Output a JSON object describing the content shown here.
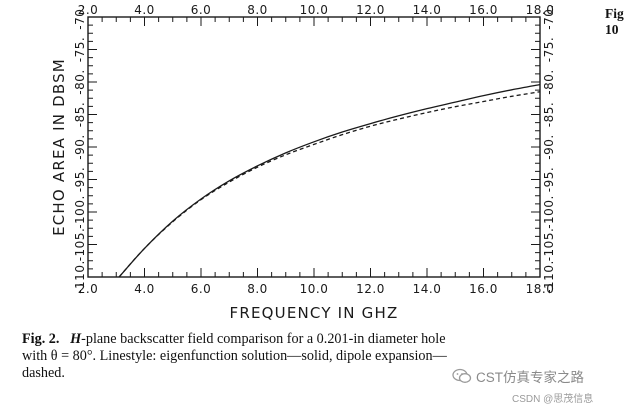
{
  "chart_data": {
    "type": "line",
    "title": "",
    "xlabel": "FREQUENCY IN GHZ",
    "ylabel": "ECHO AREA IN DBSM",
    "xlim": [
      2.0,
      18.0
    ],
    "ylim": [
      -110.0,
      -70.0
    ],
    "x_ticks": [
      "2.0",
      "4.0",
      "6.0",
      "8.0",
      "10.0",
      "12.0",
      "14.0",
      "16.0",
      "18.0"
    ],
    "y_ticks": [
      "-110.",
      "-105.",
      "-100.",
      "-95.",
      "-90.",
      "-85.",
      "-80.",
      "-75.",
      "-70."
    ],
    "grid": false,
    "series": [
      {
        "name": "eigenfunction solution",
        "style": "solid",
        "x": [
          3.1,
          4.0,
          5.0,
          6.0,
          7.0,
          8.0,
          9.0,
          10.0,
          11.0,
          12.0,
          13.0,
          14.0,
          15.0,
          16.0,
          17.0,
          18.0
        ],
        "y": [
          -110.0,
          -105.6,
          -101.4,
          -98.0,
          -95.2,
          -92.9,
          -90.9,
          -89.2,
          -87.7,
          -86.4,
          -85.2,
          -84.1,
          -83.1,
          -82.1,
          -81.2,
          -80.4
        ]
      },
      {
        "name": "dipole expansion",
        "style": "dashed",
        "x": [
          3.1,
          4.0,
          5.0,
          6.0,
          7.0,
          8.0,
          9.0,
          10.0,
          11.0,
          12.0,
          13.0,
          14.0,
          15.0,
          16.0,
          17.0,
          18.0
        ],
        "y": [
          -110.0,
          -105.6,
          -101.5,
          -98.1,
          -95.4,
          -93.1,
          -91.2,
          -89.6,
          -88.1,
          -86.8,
          -85.7,
          -84.7,
          -83.8,
          -83.0,
          -82.2,
          -81.5
        ]
      }
    ]
  },
  "caption": {
    "fig_label": "Fig. 2.",
    "h_plane": "H",
    "text_line1": "-plane backscatter field comparison for a 0.201-in diameter hole",
    "text_line2": "with θ = 80°. Linestyle: eigenfunction solution—solid, dipole expansion—",
    "text_line3": "dashed."
  },
  "side_fragment": {
    "line1": "Fig",
    "line2": "10"
  },
  "watermark": {
    "text": "CST仿真专家之路",
    "sub": "CSDN @思茂信息"
  }
}
